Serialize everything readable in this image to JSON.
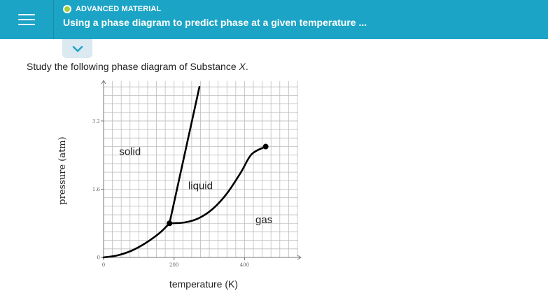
{
  "header": {
    "topic_label": "ADVANCED MATERIAL",
    "title": "Using a phase diagram to predict phase at a given temperature ...",
    "status_color": "#a5cd3a",
    "accent_color": "#1ba4c6",
    "menu_icon": "hamburger-icon",
    "expand_icon": "chevron-down-icon"
  },
  "question": {
    "prefix": "Study the following phase diagram of Substance ",
    "substance": "X",
    "suffix": "."
  },
  "chart_data": {
    "type": "line",
    "title": "",
    "xlabel": "temperature (K)",
    "ylabel": "pressure (atm)",
    "xlim": [
      0,
      560
    ],
    "ylim": [
      0,
      4.2
    ],
    "x_ticks": [
      0,
      200,
      400
    ],
    "y_ticks": [
      0,
      1.6,
      3.2
    ],
    "x_tick_labels": [
      "0",
      "200",
      "400"
    ],
    "y_tick_labels": [
      "0",
      "1.6",
      "3.2"
    ],
    "grid": true,
    "regions": [
      {
        "label": "solid",
        "x": 75,
        "y": 2.4
      },
      {
        "label": "liquid",
        "x": 275,
        "y": 1.6
      },
      {
        "label": "gas",
        "x": 455,
        "y": 0.8
      }
    ],
    "series": [
      {
        "role": "sublimation-curve",
        "points": [
          [
            0,
            0
          ],
          [
            40,
            0.05
          ],
          [
            80,
            0.16
          ],
          [
            120,
            0.34
          ],
          [
            160,
            0.58
          ],
          [
            187,
            0.8
          ]
        ]
      },
      {
        "role": "melting-curve",
        "points": [
          [
            187,
            0.8
          ],
          [
            272,
            4.0
          ]
        ]
      },
      {
        "role": "vaporization-curve",
        "points": [
          [
            187,
            0.8
          ],
          [
            230,
            0.82
          ],
          [
            270,
            0.92
          ],
          [
            310,
            1.14
          ],
          [
            350,
            1.5
          ],
          [
            390,
            2.0
          ],
          [
            420,
            2.42
          ],
          [
            460,
            2.6
          ]
        ]
      }
    ],
    "markers": [
      {
        "role": "triple-point",
        "x": 187,
        "y": 0.8
      },
      {
        "role": "critical-point",
        "x": 460,
        "y": 2.6
      }
    ]
  }
}
